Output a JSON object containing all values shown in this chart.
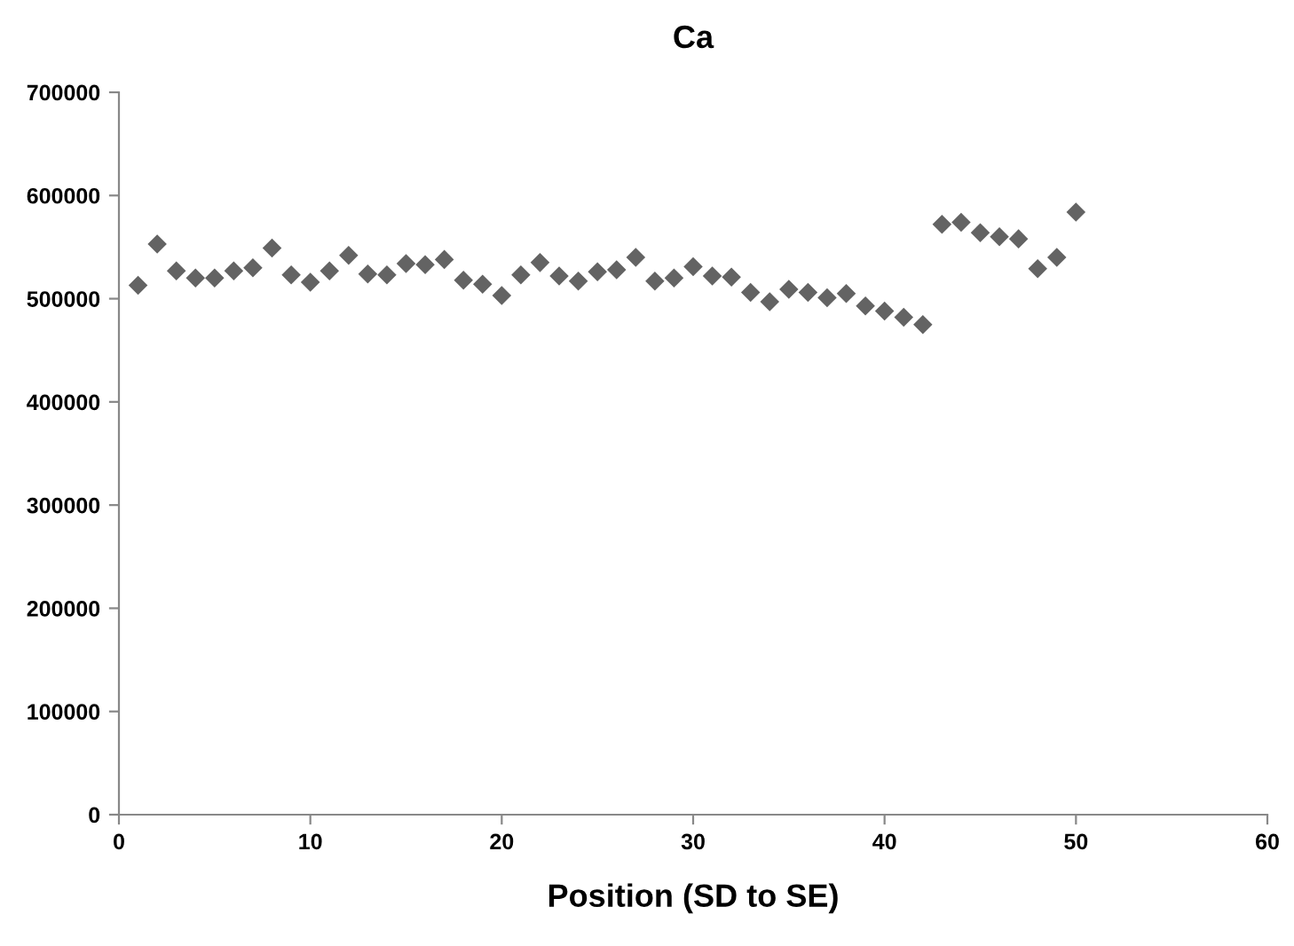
{
  "chart_data": {
    "type": "scatter",
    "title": "Ca",
    "xlabel": "Position (SD to SE)",
    "x": [
      1,
      2,
      3,
      4,
      5,
      6,
      7,
      8,
      9,
      10,
      11,
      12,
      13,
      14,
      15,
      16,
      17,
      18,
      19,
      20,
      21,
      22,
      23,
      24,
      25,
      26,
      27,
      28,
      29,
      30,
      31,
      32,
      33,
      34,
      35,
      36,
      37,
      38,
      39,
      40,
      41,
      42,
      43,
      44,
      45,
      46,
      47,
      48,
      49,
      50
    ],
    "values": [
      513000,
      553000,
      527000,
      520000,
      520000,
      527000,
      530000,
      549000,
      523000,
      516000,
      527000,
      542000,
      524000,
      523000,
      534000,
      533000,
      538000,
      518000,
      514000,
      503000,
      523000,
      535000,
      522000,
      517000,
      526000,
      528000,
      540000,
      517000,
      520000,
      531000,
      522000,
      521000,
      506000,
      497000,
      509000,
      506000,
      501000,
      505000,
      493000,
      488000,
      482000,
      475000,
      572000,
      574000,
      564000,
      560000,
      558000,
      529000,
      540000,
      584000
    ],
    "color": "#636363",
    "marker": "diamond",
    "xlim": [
      0,
      60
    ],
    "xticks": [
      0,
      10,
      20,
      30,
      40,
      50,
      60
    ],
    "ylim": [
      0,
      700000
    ],
    "yticks": [
      0,
      100000,
      200000,
      300000,
      400000,
      500000,
      600000,
      700000
    ],
    "grid": false,
    "legend": false
  }
}
